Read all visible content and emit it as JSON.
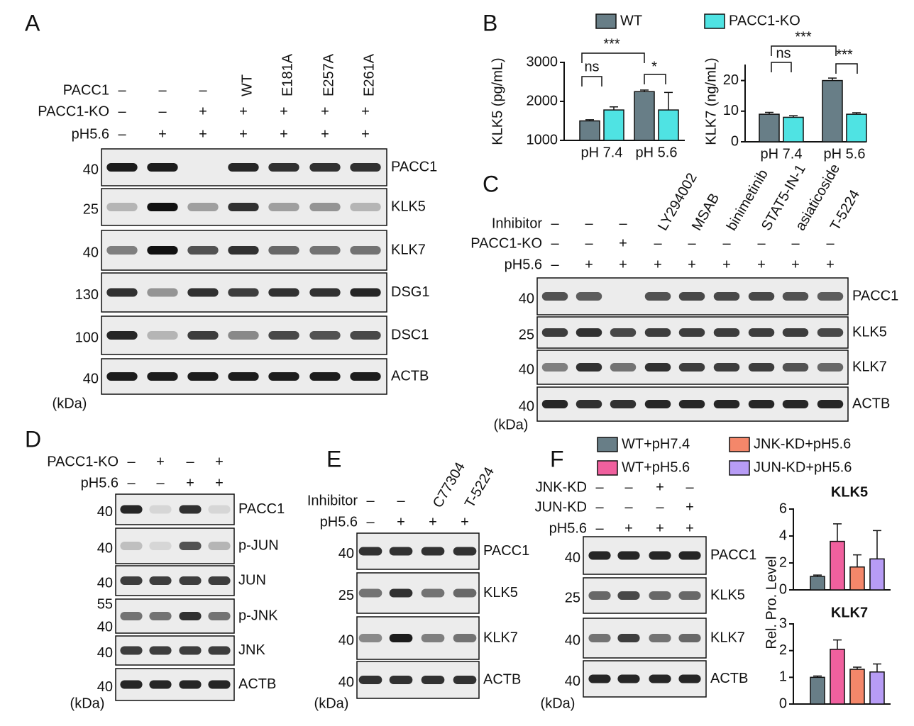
{
  "panels": [
    {
      "letter": "A",
      "unit": "(kDa)",
      "conditions": [
        {
          "label": "PACC1",
          "signs": [
            "–",
            "–",
            "–",
            "WT",
            "E181A",
            "E257A",
            "E261A"
          ]
        },
        {
          "label": "PACC1-KO",
          "signs": [
            "–",
            "–",
            "+",
            "+",
            "+",
            "+",
            "+"
          ]
        },
        {
          "label": "pH5.6",
          "signs": [
            "–",
            "+",
            "+",
            "+",
            "+",
            "+",
            "+"
          ]
        }
      ],
      "blots": [
        {
          "name": "PACC1",
          "markers": [
            40
          ]
        },
        {
          "name": "KLK5",
          "markers": [
            25
          ]
        },
        {
          "name": "KLK7",
          "markers": [
            40
          ]
        },
        {
          "name": "DSG1",
          "markers": [
            130
          ]
        },
        {
          "name": "DSC1",
          "markers": [
            100
          ]
        },
        {
          "name": "ACTB",
          "markers": [
            40
          ]
        }
      ]
    },
    {
      "letter": "C",
      "unit": "(kDa)",
      "conditions": [
        {
          "label": "Inhibitor",
          "signs": [
            "–",
            "–",
            "–",
            "LY294002",
            "MSAB",
            "binimetinib",
            "STAT5-IN-1",
            "asiaticoside",
            "T-5224"
          ]
        },
        {
          "label": "PACC1-KO",
          "signs": [
            "–",
            "–",
            "+",
            "–",
            "–",
            "–",
            "–",
            "–",
            "–"
          ]
        },
        {
          "label": "pH5.6",
          "signs": [
            "–",
            "+",
            "+",
            "+",
            "+",
            "+",
            "+",
            "+",
            "+"
          ]
        }
      ],
      "blots": [
        {
          "name": "PACC1",
          "markers": [
            40
          ]
        },
        {
          "name": "KLK5",
          "markers": [
            25
          ]
        },
        {
          "name": "KLK7",
          "markers": [
            40
          ]
        },
        {
          "name": "ACTB",
          "markers": [
            40
          ]
        }
      ]
    },
    {
      "letter": "D",
      "unit": "(kDa)",
      "conditions": [
        {
          "label": "PACC1-KO",
          "signs": [
            "–",
            "+",
            "–",
            "+"
          ]
        },
        {
          "label": "pH5.6",
          "signs": [
            "–",
            "–",
            "+",
            "+"
          ]
        }
      ],
      "blots": [
        {
          "name": "PACC1",
          "markers": [
            40
          ]
        },
        {
          "name": "p-JUN",
          "markers": [
            40
          ]
        },
        {
          "name": "JUN",
          "markers": [
            40
          ]
        },
        {
          "name": "p-JNK",
          "markers": [
            55,
            40
          ]
        },
        {
          "name": "JNK",
          "markers": [
            40
          ]
        },
        {
          "name": "ACTB",
          "markers": [
            40
          ]
        }
      ]
    },
    {
      "letter": "E",
      "unit": "(kDa)",
      "conditions": [
        {
          "label": "Inhibitor",
          "signs": [
            "–",
            "–",
            "C77304",
            "T-5224"
          ]
        },
        {
          "label": "pH5.6",
          "signs": [
            "–",
            "+",
            "+",
            "+"
          ]
        }
      ],
      "blots": [
        {
          "name": "PACC1",
          "markers": [
            40
          ]
        },
        {
          "name": "KLK5",
          "markers": [
            25
          ]
        },
        {
          "name": "KLK7",
          "markers": [
            40
          ]
        },
        {
          "name": "ACTB",
          "markers": [
            40
          ]
        }
      ]
    },
    {
      "letter": "F",
      "unit": "(kDa)",
      "conditions": [
        {
          "label": "JNK-KD",
          "signs": [
            "–",
            "–",
            "+",
            "–"
          ]
        },
        {
          "label": "JUN-KD",
          "signs": [
            "–",
            "–",
            "–",
            "+"
          ]
        },
        {
          "label": "pH5.6",
          "signs": [
            "–",
            "+",
            "+",
            "+"
          ]
        }
      ],
      "blots": [
        {
          "name": "PACC1",
          "markers": [
            40
          ]
        },
        {
          "name": "KLK5",
          "markers": [
            25
          ]
        },
        {
          "name": "KLK7",
          "markers": [
            40
          ]
        },
        {
          "name": "ACTB",
          "markers": [
            40
          ]
        }
      ]
    }
  ],
  "chart_data": [
    {
      "type": "bar",
      "panel": "B",
      "ylabel": "KLK5 (pg/mL)",
      "categories": [
        "pH 7.4",
        "pH 5.6"
      ],
      "series": [
        {
          "name": "WT",
          "color": "#687e87",
          "values": [
            1500,
            2250
          ],
          "errors": [
            30,
            40
          ]
        },
        {
          "name": "PACC1-KO",
          "color": "#4fe3e3",
          "values": [
            1780,
            1780
          ],
          "errors": [
            80,
            450
          ]
        }
      ],
      "ylim": [
        1000,
        3000
      ],
      "yticks": [
        1000,
        2000,
        3000
      ],
      "annotations": [
        "ns",
        "***",
        "*"
      ]
    },
    {
      "type": "bar",
      "ylabel": "KLK7 (ng/mL)",
      "categories": [
        "pH 7.4",
        "pH 5.6"
      ],
      "series": [
        {
          "color": "#687e87",
          "values": [
            9,
            20
          ],
          "errors": [
            0.6,
            0.8
          ]
        },
        {
          "color": "#4fe3e3",
          "values": [
            8,
            9
          ],
          "errors": [
            0.5,
            0.5
          ]
        }
      ],
      "ylim": [
        0,
        25
      ],
      "yticks": [
        0,
        10,
        20
      ],
      "annotations": [
        "ns",
        "***",
        "***"
      ]
    },
    {
      "type": "bar",
      "title": "KLK5",
      "categories": [
        null
      ],
      "series": [
        {
          "name": "WT+pH7.4",
          "color": "#687e87",
          "values": [
            1.0
          ],
          "errors": [
            0.1
          ]
        },
        {
          "name": "WT+pH5.6",
          "color": "#f0609e",
          "values": [
            3.6
          ],
          "errors": [
            1.3
          ]
        },
        {
          "name": "JNK-KD+pH5.6",
          "color": "#f4876a",
          "values": [
            1.7
          ],
          "errors": [
            0.9
          ]
        },
        {
          "name": "JUN-KD+pH5.6",
          "color": "#b79cf5",
          "values": [
            2.3
          ],
          "errors": [
            2.1
          ]
        }
      ],
      "ylim": [
        0,
        6
      ],
      "yticks": [
        0,
        2,
        4,
        6
      ]
    },
    {
      "type": "bar",
      "title": "KLK7",
      "ylabel": "Rel. Pro. Level",
      "categories": [
        null
      ],
      "series": [
        {
          "color": "#687e87",
          "values": [
            1.0
          ],
          "errors": [
            0.05
          ]
        },
        {
          "color": "#f0609e",
          "values": [
            2.05
          ],
          "errors": [
            0.35
          ]
        },
        {
          "color": "#f4876a",
          "values": [
            1.3
          ],
          "errors": [
            0.08
          ]
        },
        {
          "color": "#b79cf5",
          "values": [
            1.2
          ],
          "errors": [
            0.3
          ]
        }
      ],
      "ylim": [
        0,
        3
      ],
      "yticks": [
        0,
        1,
        2,
        3
      ]
    }
  ]
}
